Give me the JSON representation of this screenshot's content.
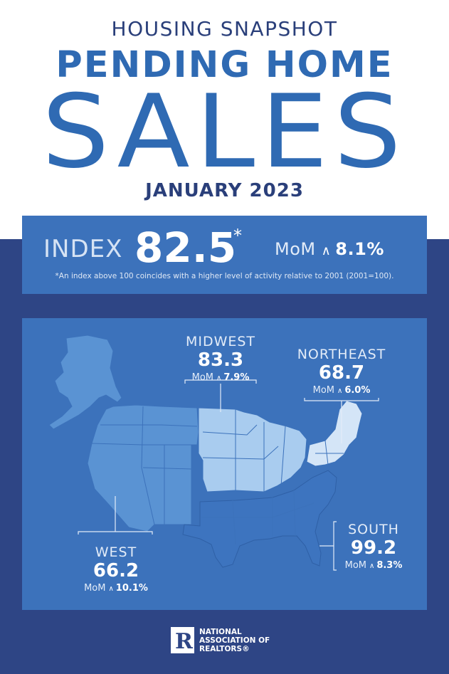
{
  "header": {
    "kicker": "HOUSING SNAPSHOT",
    "headline": "PENDING HOME",
    "headline_big": "SALES",
    "period": "JANUARY 2023"
  },
  "index": {
    "label": "INDEX",
    "value": "82.5",
    "star": "*",
    "mom_label": "MoM",
    "mom_change": "8.1%",
    "footnote": "*An index above 100 coincides with a higher level of activity relative to 2001 (2001=100)."
  },
  "regions": [
    {
      "name": "MIDWEST",
      "value": "83.3",
      "mom_label": "MoM",
      "mom_change": "7.9%"
    },
    {
      "name": "NORTHEAST",
      "value": "68.7",
      "mom_label": "MoM",
      "mom_change": "6.0%"
    },
    {
      "name": "SOUTH",
      "value": "99.2",
      "mom_label": "MoM",
      "mom_change": "8.3%"
    },
    {
      "name": "WEST",
      "value": "66.2",
      "mom_label": "MoM",
      "mom_change": "10.1%"
    }
  ],
  "icons": {
    "up": "up-caret-icon",
    "logo": "realtor-r-logo-icon"
  },
  "logo": {
    "line1": "NATIONAL",
    "line2": "ASSOCIATION OF",
    "line3": "REALTORS®"
  },
  "colors": {
    "navy": "#2e4585",
    "panel": "#3c72bb",
    "title_blue": "#2f6ab3",
    "west": "#5a93d3",
    "midwest": "#a9ccef",
    "northeast": "#d4e5f7",
    "south": "#3d74bf"
  }
}
